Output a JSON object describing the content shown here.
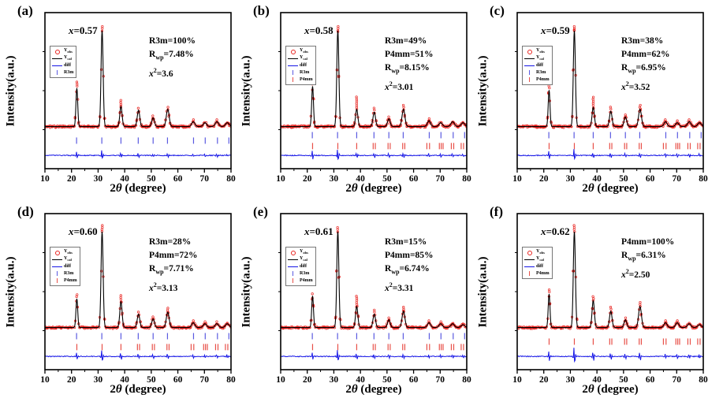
{
  "chart_data": {
    "type": "line+scatter",
    "description": "Six-panel XRD Rietveld refinement patterns vs composition x",
    "common": {
      "xlabel": {
        "pre": "2",
        "theta": "θ",
        "post": " (degree)"
      },
      "ylabel": "Intensity(a.u.)",
      "x_ticks": [
        10,
        20,
        30,
        40,
        50,
        60,
        70,
        80
      ],
      "x_range": [
        10,
        80
      ],
      "grid": false,
      "legend_position": "upper-left",
      "colors": {
        "obs": "#e8231f",
        "calc": "#000000",
        "diff": "#1515e6",
        "r3m_tick": "#5a5ae0",
        "p4mm_tick": "#e85048"
      },
      "legend_labels": {
        "obs": {
          "main": "Y",
          "sub": "obs"
        },
        "cal": {
          "main": "Y",
          "sub": "cal"
        },
        "diff": {
          "main": "diff",
          "sub": ""
        },
        "r3m": {
          "main": "R3m",
          "sub": ""
        },
        "p4mm": {
          "main": "P4mm",
          "sub": ""
        }
      },
      "r3m_tick_positions": [
        21.9,
        31.4,
        38.6,
        45.1,
        50.7,
        56.1,
        65.9,
        70.3,
        74.9,
        79.2
      ],
      "p4mm_tick_positions": [
        22.0,
        31.5,
        38.6,
        44.8,
        45.6,
        50.4,
        51.2,
        55.9,
        56.7,
        65.0,
        66.0,
        69.7,
        70.4,
        71.1,
        74.2,
        75.1,
        77.9,
        78.8
      ]
    },
    "panels": [
      {
        "tag": "(a)",
        "comp": {
          "var": "x",
          "rest": "=0.57"
        },
        "stats": [
          {
            "pre": "R3m",
            "rest": "=100%"
          },
          {
            "pre": "R",
            "sub": "wp",
            "rest": "=7.48%"
          },
          {
            "pre": "x",
            "sup": "2",
            "rest": "=3.6",
            "it": true
          }
        ],
        "phases": [
          "R3m"
        ],
        "legend": [
          "obs",
          "cal",
          "diff",
          "r3m"
        ],
        "diff_scale": 0.8,
        "peaks": [
          {
            "x": 22.0,
            "h": 0.4,
            "oh": 0.06
          },
          {
            "x": 31.5,
            "h": 1.0,
            "oh": 0.05
          },
          {
            "x": 38.6,
            "h": 0.21,
            "oh": 0.06
          },
          {
            "x": 45.2,
            "h": 0.17,
            "oh": 0.02
          },
          {
            "x": 50.7,
            "h": 0.09,
            "oh": 0.02
          },
          {
            "x": 56.2,
            "h": 0.18,
            "oh": 0.03
          },
          {
            "x": 65.8,
            "h": 0.05,
            "oh": 0.015
          },
          {
            "x": 70.2,
            "h": 0.04,
            "oh": 0.01
          },
          {
            "x": 74.7,
            "h": 0.05,
            "oh": 0.015
          },
          {
            "x": 78.6,
            "h": 0.04,
            "oh": 0.01
          }
        ]
      },
      {
        "tag": "(b)",
        "comp": {
          "var": "x",
          "rest": "=0.58"
        },
        "stats": [
          {
            "pre": "R3m",
            "rest": "=49%"
          },
          {
            "pre": "P4mm",
            "rest": "=51%"
          },
          {
            "pre": "R",
            "sub": "wp",
            "rest": "=8.15%"
          },
          {
            "pre": "x",
            "sup": "2",
            "rest": "=3.01",
            "it": true
          }
        ],
        "phases": [
          "R3m",
          "P4mm"
        ],
        "legend": [
          "obs",
          "cal",
          "diff",
          "r3m",
          "p4mm"
        ],
        "diff_scale": 1.0,
        "peaks": [
          {
            "x": 22.0,
            "h": 0.42,
            "oh": 0.03
          },
          {
            "x": 31.5,
            "h": 1.0,
            "oh": 0.04
          },
          {
            "x": 38.6,
            "h": 0.18,
            "oh": 0.12
          },
          {
            "x": 45.2,
            "h": 0.15,
            "oh": 0.04
          },
          {
            "x": 50.7,
            "h": 0.08,
            "oh": 0.02
          },
          {
            "x": 56.2,
            "h": 0.18,
            "oh": 0.04
          },
          {
            "x": 65.8,
            "h": 0.06,
            "oh": 0.02
          },
          {
            "x": 70.2,
            "h": 0.04,
            "oh": 0.01
          },
          {
            "x": 74.7,
            "h": 0.05,
            "oh": 0.01
          },
          {
            "x": 78.6,
            "h": 0.04,
            "oh": 0.01
          }
        ]
      },
      {
        "tag": "(c)",
        "comp": {
          "var": "x",
          "rest": "=0.59"
        },
        "stats": [
          {
            "pre": "R3m",
            "rest": "=38%"
          },
          {
            "pre": "P4mm",
            "rest": "=62%"
          },
          {
            "pre": "R",
            "sub": "wp",
            "rest": "=6.95%"
          },
          {
            "pre": "x",
            "sup": "2",
            "rest": "=3.52",
            "it": true
          }
        ],
        "phases": [
          "R3m",
          "P4mm"
        ],
        "legend": [
          "obs",
          "cal",
          "diff",
          "r3m",
          "p4mm"
        ],
        "diff_scale": 1.0,
        "peaks": [
          {
            "x": 22.0,
            "h": 0.38,
            "oh": 0.04
          },
          {
            "x": 31.5,
            "h": 1.0,
            "oh": 0.04
          },
          {
            "x": 38.6,
            "h": 0.2,
            "oh": 0.1
          },
          {
            "x": 45.2,
            "h": 0.16,
            "oh": 0.04
          },
          {
            "x": 50.7,
            "h": 0.1,
            "oh": 0.03
          },
          {
            "x": 56.2,
            "h": 0.18,
            "oh": 0.04
          },
          {
            "x": 65.8,
            "h": 0.05,
            "oh": 0.015
          },
          {
            "x": 70.2,
            "h": 0.04,
            "oh": 0.015
          },
          {
            "x": 74.7,
            "h": 0.05,
            "oh": 0.015
          },
          {
            "x": 78.6,
            "h": 0.04,
            "oh": 0.01
          }
        ]
      },
      {
        "tag": "(d)",
        "comp": {
          "var": "x",
          "rest": "=0.60"
        },
        "stats": [
          {
            "pre": "R3m",
            "rest": "=28%"
          },
          {
            "pre": "P4mm",
            "rest": "=72%"
          },
          {
            "pre": "R",
            "sub": "wp",
            "rest": "=7.71%"
          },
          {
            "pre": "x",
            "sup": "2",
            "rest": "=3.13",
            "it": true
          }
        ],
        "phases": [
          "R3m",
          "P4mm"
        ],
        "legend": [
          "obs",
          "cal",
          "diff",
          "r3m",
          "p4mm"
        ],
        "diff_scale": 1.0,
        "peaks": [
          {
            "x": 22.0,
            "h": 0.3,
            "oh": 0.05
          },
          {
            "x": 31.5,
            "h": 1.0,
            "oh": 0.07
          },
          {
            "x": 38.6,
            "h": 0.27,
            "oh": 0.06
          },
          {
            "x": 45.2,
            "h": 0.14,
            "oh": 0.03
          },
          {
            "x": 50.7,
            "h": 0.09,
            "oh": 0.03
          },
          {
            "x": 56.2,
            "h": 0.16,
            "oh": 0.04
          },
          {
            "x": 65.8,
            "h": 0.05,
            "oh": 0.02
          },
          {
            "x": 70.2,
            "h": 0.04,
            "oh": 0.015
          },
          {
            "x": 74.7,
            "h": 0.04,
            "oh": 0.015
          },
          {
            "x": 78.6,
            "h": 0.04,
            "oh": 0.01
          }
        ]
      },
      {
        "tag": "(e)",
        "comp": {
          "var": "x",
          "rest": "=0.61"
        },
        "stats": [
          {
            "pre": "R3m",
            "rest": "=15%"
          },
          {
            "pre": "P4mm",
            "rest": "=85%"
          },
          {
            "pre": "R",
            "sub": "wp",
            "rest": "=6.74%"
          },
          {
            "pre": "x",
            "sup": "2",
            "rest": "=3.31",
            "it": true
          }
        ],
        "phases": [
          "R3m",
          "P4mm"
        ],
        "legend": [
          "obs",
          "cal",
          "diff",
          "r3m",
          "p4mm"
        ],
        "diff_scale": 1.0,
        "peaks": [
          {
            "x": 22.0,
            "h": 0.33,
            "oh": 0.03
          },
          {
            "x": 31.5,
            "h": 1.0,
            "oh": 0.05
          },
          {
            "x": 38.6,
            "h": 0.22,
            "oh": 0.11
          },
          {
            "x": 45.2,
            "h": 0.14,
            "oh": 0.04
          },
          {
            "x": 50.7,
            "h": 0.08,
            "oh": 0.03
          },
          {
            "x": 56.2,
            "h": 0.17,
            "oh": 0.04
          },
          {
            "x": 65.8,
            "h": 0.05,
            "oh": 0.02
          },
          {
            "x": 70.2,
            "h": 0.04,
            "oh": 0.015
          },
          {
            "x": 74.7,
            "h": 0.04,
            "oh": 0.01
          },
          {
            "x": 78.6,
            "h": 0.03,
            "oh": 0.01
          }
        ]
      },
      {
        "tag": "(f)",
        "comp": {
          "var": "x",
          "rest": "=0.62"
        },
        "stats": [
          {
            "pre": "P4mm",
            "rest": "=100%"
          },
          {
            "pre": "R",
            "sub": "wp",
            "rest": "=6.31%"
          },
          {
            "pre": "x",
            "sup": "2",
            "rest": "=2.50",
            "it": true
          }
        ],
        "phases": [
          "P4mm"
        ],
        "legend": [
          "obs",
          "cal",
          "diff",
          "p4mm"
        ],
        "diff_scale": 1.4,
        "peaks": [
          {
            "x": 22.0,
            "h": 0.35,
            "oh": 0.05
          },
          {
            "x": 31.5,
            "h": 1.0,
            "oh": 0.06
          },
          {
            "x": 38.6,
            "h": 0.28,
            "oh": 0.05
          },
          {
            "x": 45.2,
            "h": 0.17,
            "oh": 0.04
          },
          {
            "x": 50.7,
            "h": 0.08,
            "oh": 0.03
          },
          {
            "x": 56.2,
            "h": 0.22,
            "oh": 0.04
          },
          {
            "x": 65.8,
            "h": 0.05,
            "oh": 0.015
          },
          {
            "x": 70.2,
            "h": 0.05,
            "oh": 0.015
          },
          {
            "x": 74.7,
            "h": 0.04,
            "oh": 0.01
          },
          {
            "x": 78.6,
            "h": 0.03,
            "oh": 0.01
          }
        ]
      }
    ]
  }
}
